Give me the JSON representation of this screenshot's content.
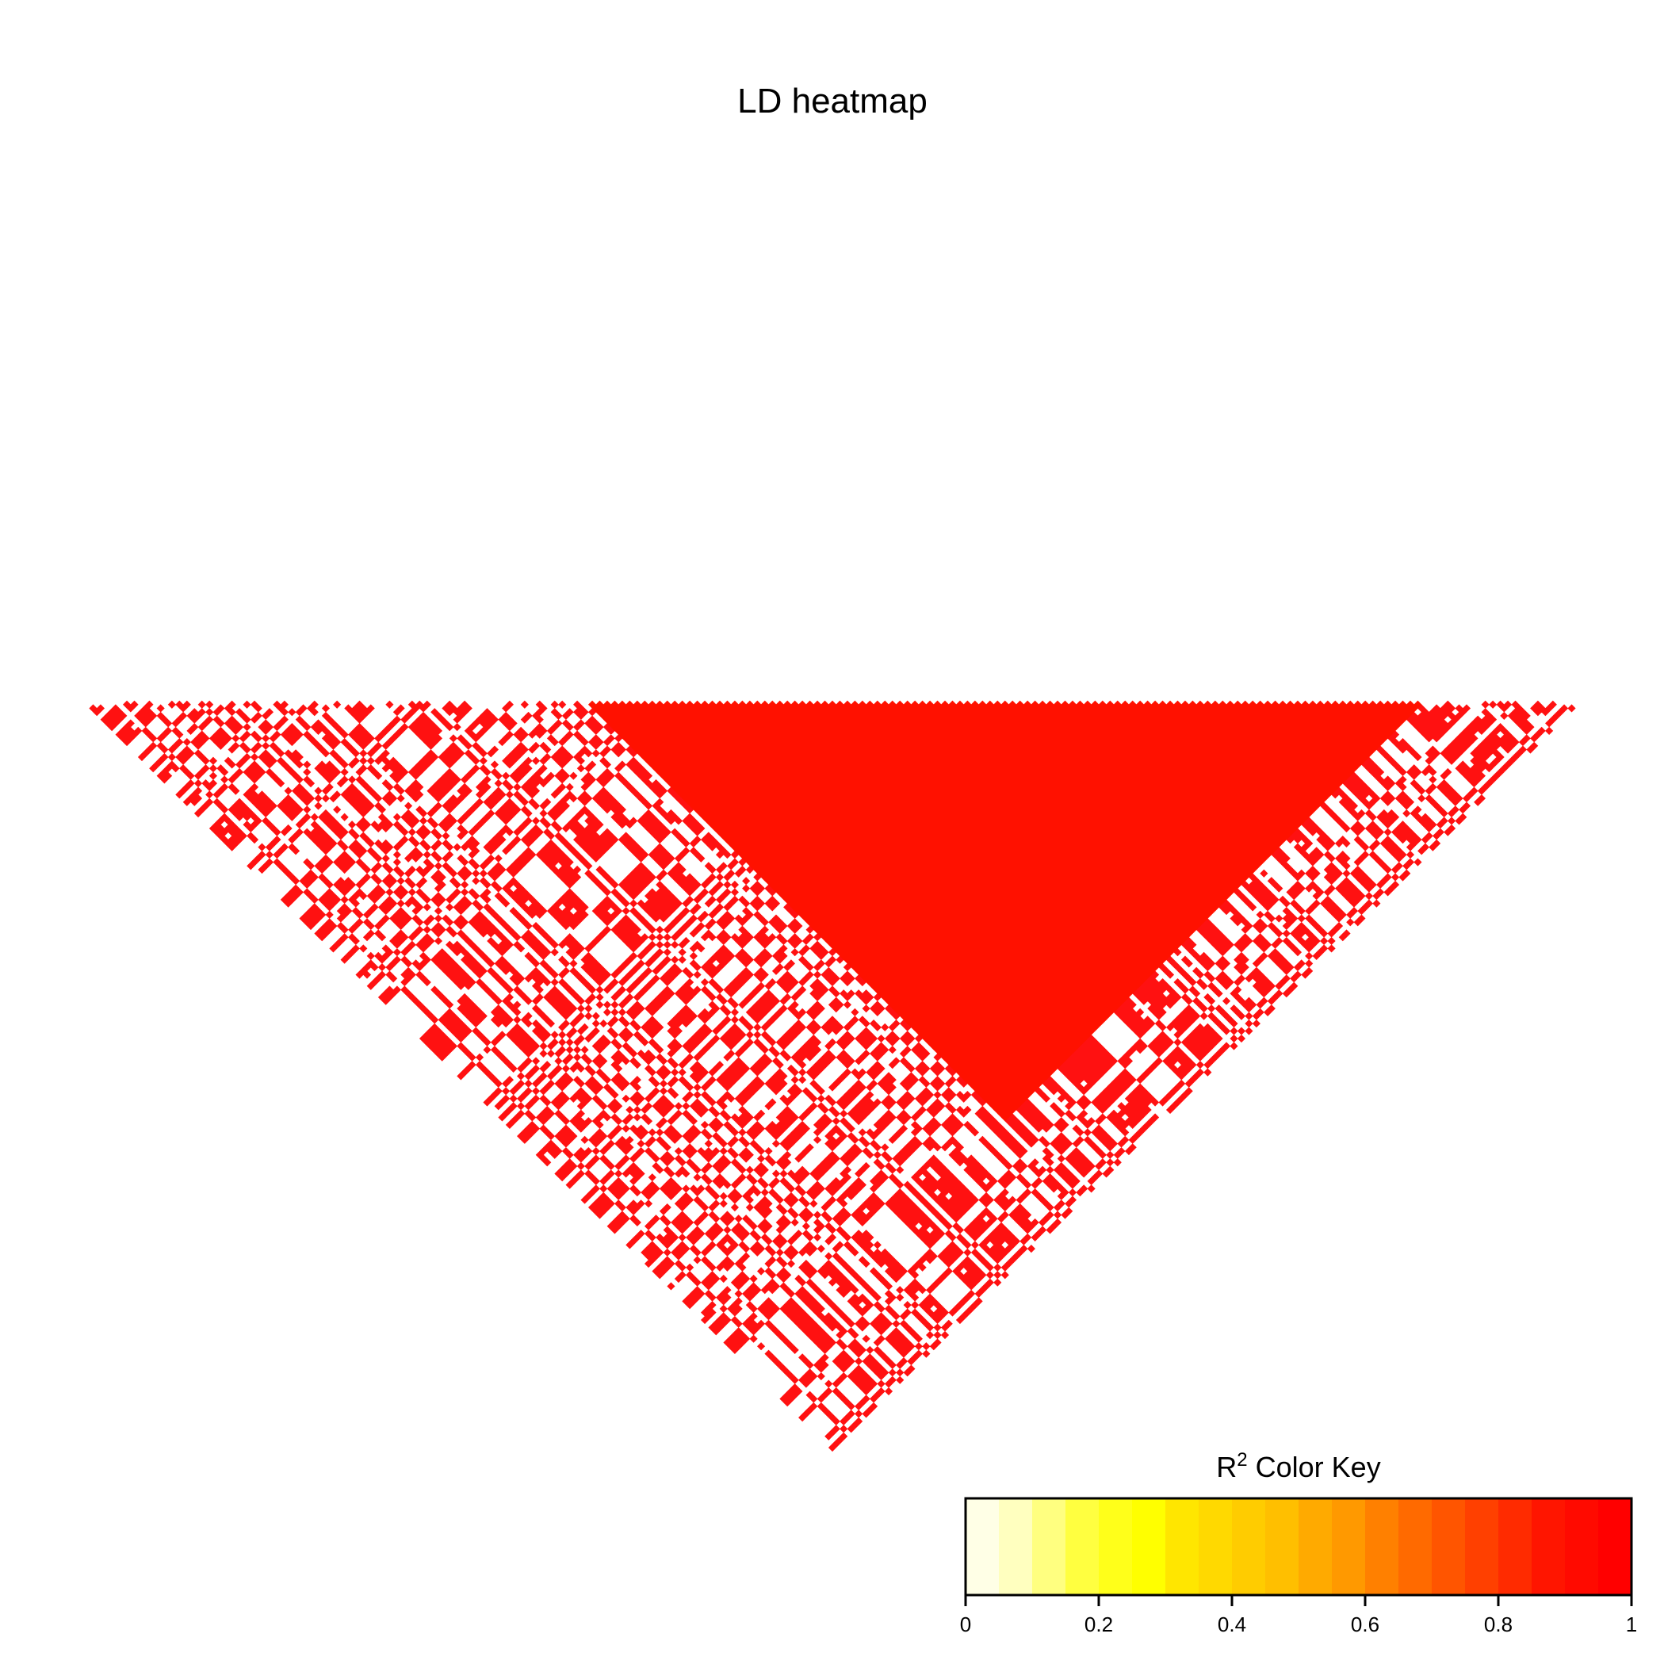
{
  "chart_data": {
    "type": "heatmap",
    "title": "LD heatmap",
    "n_snps": 200,
    "matrix_description": "lower-triangle pairwise LD (R^2) rotated 45 degrees; a large block of high LD spanning SNPs 67-178 is fully red; outside that block values are mostly 0 or 1 in a checkerboard-like pattern",
    "high_ld_block": {
      "from": 67,
      "to": 178,
      "r2": 1
    },
    "outer_r2_values": [
      0,
      1
    ],
    "colors": {
      "high": "#ff1111",
      "block": "#ff1100",
      "low": "#ffffff"
    },
    "color_key": {
      "title_main": "R",
      "title_sup": "2",
      "title_rest": " Color Key",
      "range": [
        0,
        1
      ],
      "ticks": [
        "0",
        "0.2",
        "0.4",
        "0.6",
        "0.8",
        "1"
      ],
      "colors": [
        "#FFFFE6",
        "#FFFFBF",
        "#FFFF80",
        "#FFFF40",
        "#FFFF1A",
        "#FFFF00",
        "#FFE600",
        "#FFD900",
        "#FFCC00",
        "#FFBF00",
        "#FFAA00",
        "#FF9900",
        "#FF8000",
        "#FF6A00",
        "#FF5500",
        "#FF4000",
        "#FF2B00",
        "#FF1500",
        "#FF0A00",
        "#FF0000"
      ]
    }
  }
}
